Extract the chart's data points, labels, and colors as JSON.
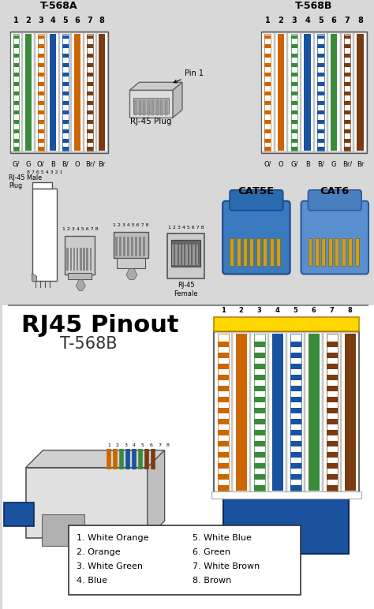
{
  "bg_color": "#d8d8d8",
  "top_bg": "#d8d8d8",
  "bottom_bg": "#ffffff",
  "title_568A": "T-568A",
  "title_568B": "T-568B",
  "section2_title": "RJ45 Pinout",
  "section2_subtitle": "T-568B",
  "wire_colors_568A": [
    {
      "solid": "#3a8a3a",
      "label": "G/",
      "white_base": true
    },
    {
      "solid": "#3a8a3a",
      "label": "G",
      "white_base": false
    },
    {
      "solid": "#cc6600",
      "label": "O/",
      "white_base": true
    },
    {
      "solid": "#1a52a0",
      "label": "B",
      "white_base": false
    },
    {
      "solid": "#1a52a0",
      "label": "B/",
      "white_base": true
    },
    {
      "solid": "#cc6600",
      "label": "O",
      "white_base": false
    },
    {
      "solid": "#7a3b10",
      "label": "Br/",
      "white_base": true
    },
    {
      "solid": "#7a3b10",
      "label": "Br",
      "white_base": false
    }
  ],
  "wire_colors_568B": [
    {
      "solid": "#cc6600",
      "label": "O/",
      "white_base": true
    },
    {
      "solid": "#cc6600",
      "label": "O",
      "white_base": false
    },
    {
      "solid": "#3a8a3a",
      "label": "G/",
      "white_base": true
    },
    {
      "solid": "#1a52a0",
      "label": "B",
      "white_base": false
    },
    {
      "solid": "#1a52a0",
      "label": "B/",
      "white_base": true
    },
    {
      "solid": "#3a8a3a",
      "label": "G",
      "white_base": false
    },
    {
      "solid": "#7a3b10",
      "label": "Br/",
      "white_base": true
    },
    {
      "solid": "#7a3b10",
      "label": "Br",
      "white_base": false
    }
  ],
  "wire_colors_pinout": [
    {
      "color": "#cc6600",
      "white_stripe": true
    },
    {
      "color": "#cc6600",
      "white_stripe": false
    },
    {
      "color": "#3a8a3a",
      "white_stripe": true
    },
    {
      "color": "#1a52a0",
      "white_stripe": false
    },
    {
      "color": "#1a52a0",
      "white_stripe": true
    },
    {
      "color": "#3a8a3a",
      "white_stripe": false
    },
    {
      "color": "#7a3b10",
      "white_stripe": true
    },
    {
      "color": "#7a3b10",
      "white_stripe": false
    }
  ],
  "legend_items": [
    [
      "1. White Orange",
      "5. White Blue"
    ],
    [
      "2. Orange",
      "6. Green"
    ],
    [
      "3. White Green",
      "7. White Brown"
    ],
    [
      "4. Blue",
      "8. Brown"
    ]
  ],
  "cable_color": "#1a52a0",
  "pin1_label": "Pin 1",
  "rj45plug_label": "RJ-45 Plug",
  "rj45female_label": "RJ-45\nFemale",
  "rj45male_label": "RJ-45 Male\nPlug",
  "cat5e_label": "CAT5E",
  "cat6_label": "CAT6"
}
